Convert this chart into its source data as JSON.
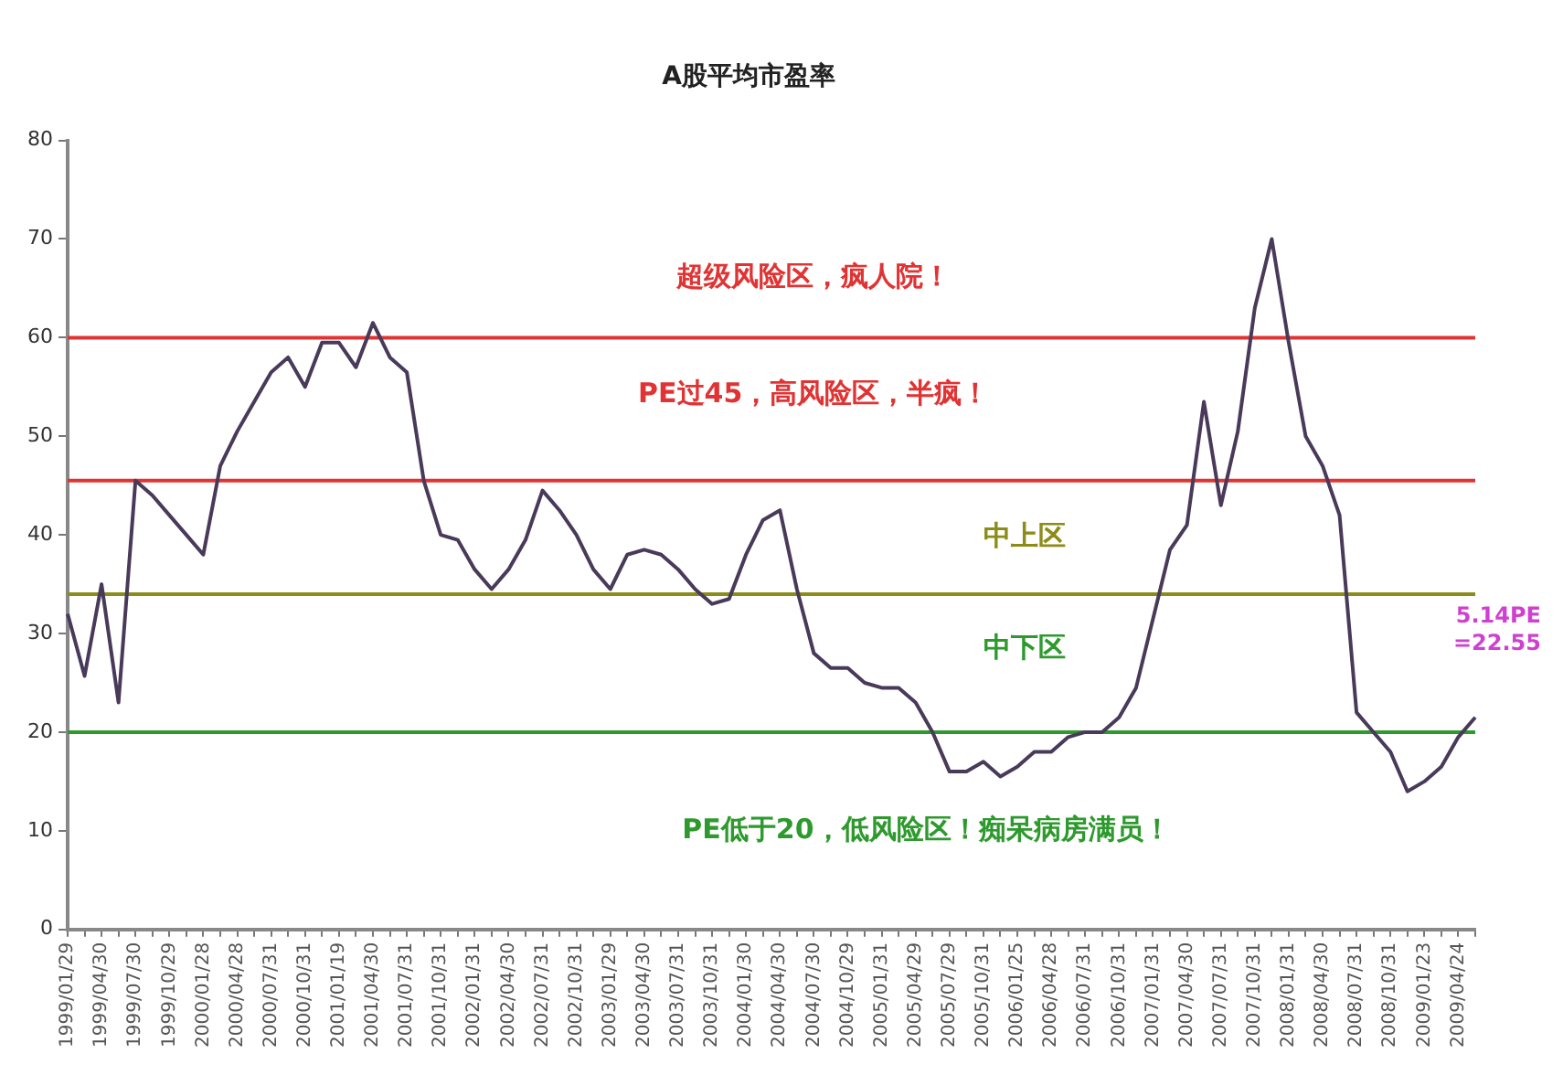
{
  "chart_data": {
    "type": "line",
    "title": "A股平均市盈率",
    "categories": [
      "1999/01/29",
      null,
      "1999/04/30",
      null,
      "1999/07/30",
      null,
      "1999/10/29",
      null,
      "2000/01/28",
      null,
      "2000/04/28",
      null,
      "2000/07/31",
      null,
      "2000/10/31",
      null,
      "2001/01/19",
      null,
      "2001/04/30",
      null,
      "2001/07/31",
      null,
      "2001/10/31",
      null,
      "2002/01/31",
      null,
      "2002/04/30",
      null,
      "2002/07/31",
      null,
      "2002/10/31",
      null,
      "2003/01/29",
      null,
      "2003/04/30",
      null,
      "2003/07/31",
      null,
      "2003/10/31",
      null,
      "2004/01/30",
      null,
      "2004/04/30",
      null,
      "2004/07/30",
      null,
      "2004/10/29",
      null,
      "2005/01/31",
      null,
      "2005/04/29",
      null,
      "2005/07/29",
      null,
      "2005/10/31",
      null,
      "2006/01/25",
      null,
      "2006/04/28",
      null,
      "2006/07/31",
      null,
      "2006/10/31",
      null,
      "2007/01/31",
      null,
      "2007/04/30",
      null,
      "2007/07/31",
      null,
      "2007/10/31",
      null,
      "2008/01/31",
      null,
      "2008/04/30",
      null,
      "2008/07/31",
      null,
      "2008/10/31",
      null,
      "2009/01/23",
      null,
      "2009/04/24",
      null
    ],
    "series": [
      {
        "color": "#4a3a5a",
        "values": [
          32,
          25.7,
          35,
          23,
          45.5,
          44,
          42,
          40,
          38,
          47,
          50.5,
          53.5,
          56.5,
          58,
          55,
          59.5,
          59.5,
          57,
          61.5,
          58,
          56.5,
          45.5,
          40,
          39.5,
          36.5,
          34.5,
          36.5,
          39.5,
          44.5,
          42.5,
          40,
          36.5,
          34.5,
          38,
          38.5,
          38,
          36.5,
          34.5,
          33,
          33.5,
          38,
          41.5,
          42.5,
          34.5,
          28,
          26.5,
          26.5,
          25,
          24.5,
          24.5,
          23,
          20,
          16,
          16,
          17,
          15.5,
          16.5,
          18,
          18,
          19.5,
          20,
          20,
          21.5,
          24.5,
          31.5,
          38.5,
          41,
          53.5,
          43,
          50.5,
          63,
          70,
          59.5,
          50,
          47,
          42,
          22,
          20,
          18,
          14,
          15,
          16.5,
          19.5,
          21.5
        ]
      }
    ],
    "ylim": [
      0,
      80
    ],
    "yticks": [
      0,
      10,
      20,
      30,
      40,
      50,
      60,
      70,
      80
    ],
    "grid": false,
    "legend": false,
    "marker": "none",
    "line_style": "solid",
    "ref_lines": [
      {
        "axis": "y",
        "value": 60,
        "color": "#e03434"
      },
      {
        "axis": "y",
        "value": 45.5,
        "color": "#e03434"
      },
      {
        "axis": "y",
        "value": 34,
        "color": "#8c8c1a"
      },
      {
        "axis": "y",
        "value": 20,
        "color": "#2e9a2e"
      }
    ],
    "annotations": [
      "超级风险区，疯人院！",
      "PE过45，高风险区，半疯！",
      "中上区",
      "中下区",
      "PE低于20，低风险区！痴呆病房满员！",
      "5.14PE =22.55"
    ]
  }
}
